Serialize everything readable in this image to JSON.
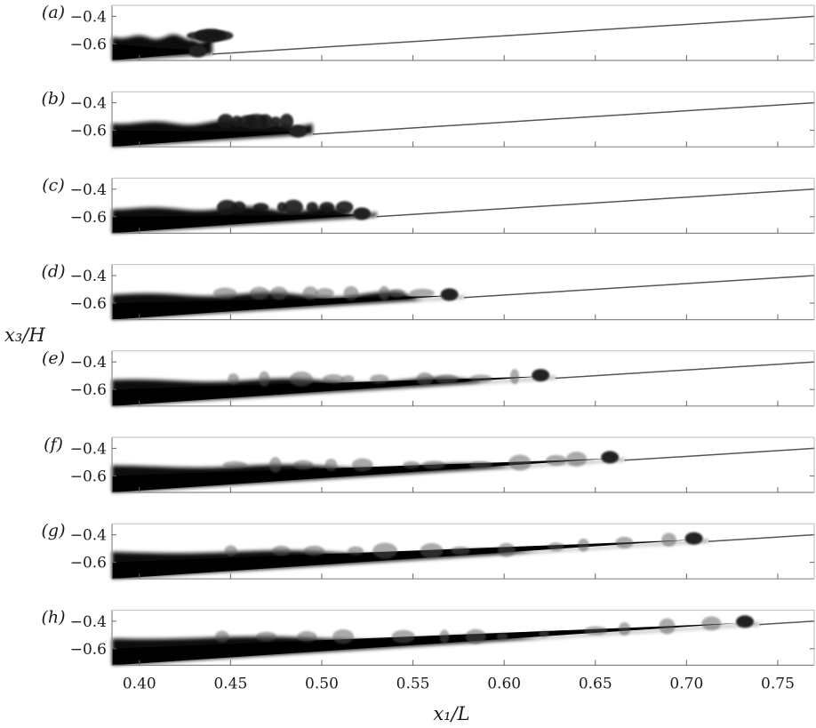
{
  "figure": {
    "ylabel": "x₃/H",
    "xlabel": "x₁/L"
  },
  "chart_data": {
    "type": "multi-panel image plot",
    "xlabel": "x₁/L",
    "ylabel": "x₃/H",
    "xlim": [
      0.385,
      0.77
    ],
    "ylim": [
      -0.72,
      -0.32
    ],
    "xticks": [
      "0.40",
      "0.45",
      "0.50",
      "0.55",
      "0.60",
      "0.65",
      "0.70",
      "0.75"
    ],
    "xtick_values": [
      0.4,
      0.45,
      0.5,
      0.55,
      0.6,
      0.65,
      0.7,
      0.75
    ],
    "yticks": [
      "−0.4",
      "−0.6"
    ],
    "ytick_values": [
      -0.4,
      -0.6
    ],
    "slope_line": {
      "x": [
        0.385,
        0.77
      ],
      "y": [
        -0.72,
        -0.4
      ]
    },
    "panels": [
      {
        "label": "(a)",
        "front_x": 0.44
      },
      {
        "label": "(b)",
        "front_x": 0.495
      },
      {
        "label": "(c)",
        "front_x": 0.53
      },
      {
        "label": "(d)",
        "front_x": 0.578
      },
      {
        "label": "(e)",
        "front_x": 0.628
      },
      {
        "label": "(f)",
        "front_x": 0.666
      },
      {
        "label": "(g)",
        "front_x": 0.712
      },
      {
        "label": "(h)",
        "front_x": 0.74
      }
    ]
  }
}
